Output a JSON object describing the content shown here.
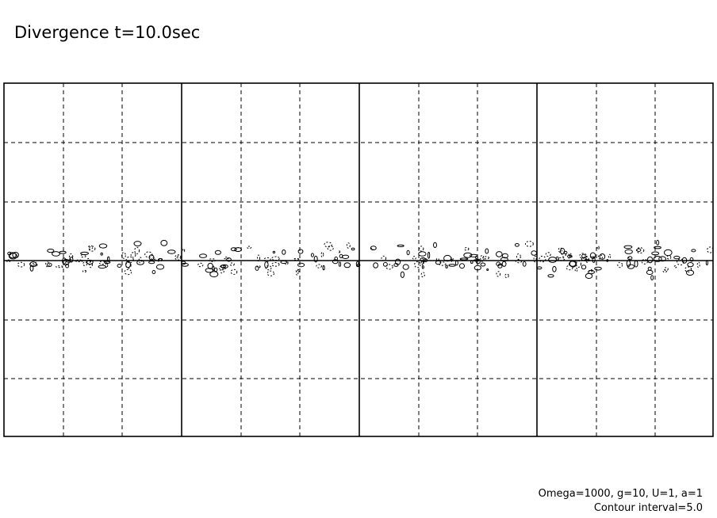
{
  "chart_data": {
    "type": "contour",
    "title": "Divergence t=10.0sec",
    "annotations": [
      "Omega=1000, g=10, U=1, a=1",
      "Contour interval=5.0"
    ]
  }
}
